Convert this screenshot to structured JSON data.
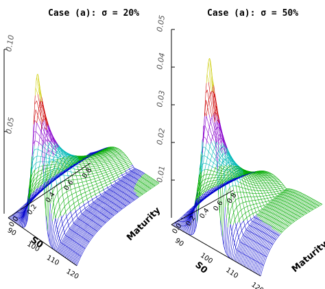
{
  "chart_data": [
    {
      "type": "surface",
      "title": "Case (a): σ = 20%",
      "xlabel": "S0",
      "ylabel": "Maturity",
      "x_ticks": [
        "120",
        "110",
        "100",
        "90"
      ],
      "y_ticks": [
        "0.0",
        "0.2",
        "0.4",
        "0.6",
        "0.8"
      ],
      "z_ticks": [
        "0.05",
        "0.10"
      ],
      "x_range": [
        85,
        120
      ],
      "y_range": [
        0.0,
        0.9
      ],
      "peak": {
        "S0": 100,
        "maturity": 0.0,
        "value": 0.1
      },
      "shoulder_value": 0.017,
      "colors": [
        "#0000cc",
        "#00aa00",
        "#00b8b8",
        "#8800cc",
        "#cc0000",
        "#cccc00"
      ]
    },
    {
      "type": "surface",
      "title": "Case (a): σ = 50%",
      "xlabel": "S0",
      "ylabel": "Maturity",
      "x_ticks": [
        "120",
        "110",
        "100",
        "90"
      ],
      "y_ticks": [
        "0.0",
        "0.2",
        "0.4",
        "0.6",
        "0.8"
      ],
      "z_ticks": [
        "0.01",
        "0.02",
        "0.03",
        "0.04",
        "0.05"
      ],
      "x_range": [
        85,
        120
      ],
      "y_range": [
        0.0,
        0.9
      ],
      "peak": {
        "S0": 100,
        "maturity": 0.0,
        "value": 0.05
      },
      "shoulder_value": 0.01,
      "colors": [
        "#0000cc",
        "#00aa00",
        "#00b8b8",
        "#8800cc",
        "#cc0000",
        "#cccc00"
      ]
    }
  ]
}
